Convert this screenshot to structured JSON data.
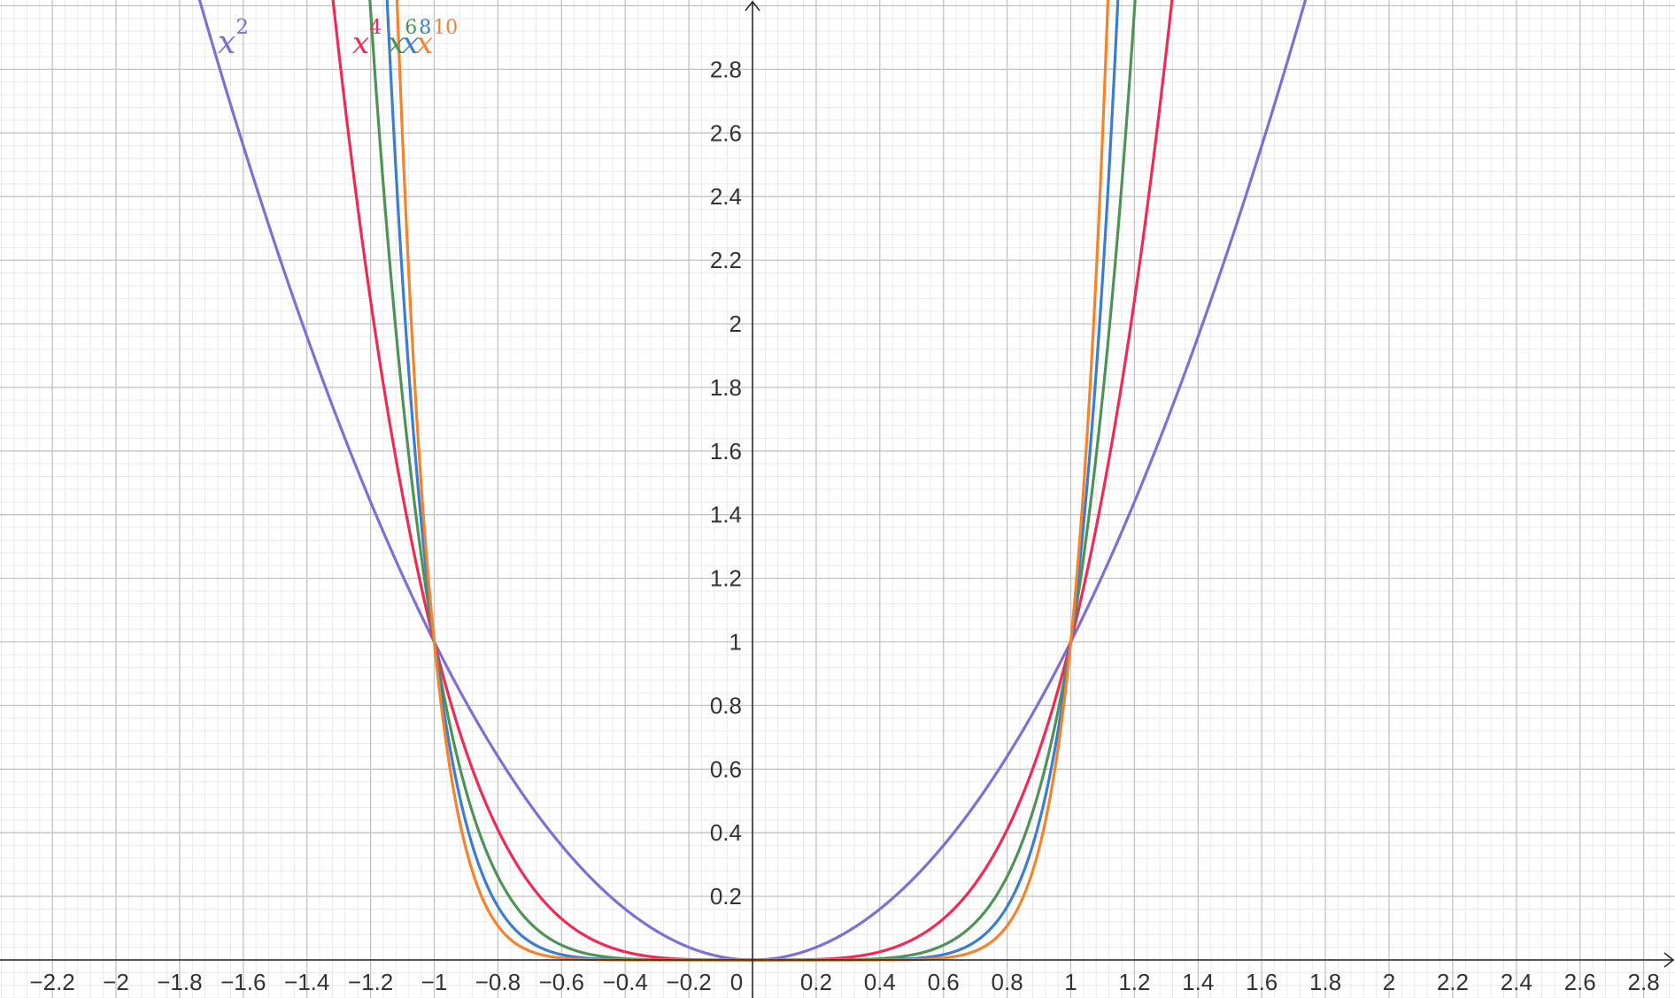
{
  "chart_data": {
    "type": "line",
    "title": "",
    "xlabel": "",
    "ylabel": "",
    "xlim": [
      -2.37,
      2.89
    ],
    "ylim": [
      -0.12,
      3.0
    ],
    "grid": true,
    "x_ticks": [
      "−2.2",
      "−2",
      "−1.8",
      "−1.6",
      "−1.4",
      "−1.2",
      "−1",
      "−0.8",
      "−0.6",
      "−0.4",
      "−0.2",
      "0",
      "0.2",
      "0.4",
      "0.6",
      "0.8",
      "1",
      "1.2",
      "1.4",
      "1.6",
      "1.8",
      "2",
      "2.2",
      "2.4",
      "2.6",
      "2.8"
    ],
    "y_ticks": [
      "0.2",
      "0.4",
      "0.6",
      "0.8",
      "1",
      "1.2",
      "1.4",
      "1.6",
      "1.8",
      "2",
      "2.2",
      "2.4",
      "2.6",
      "2.8"
    ],
    "series": [
      {
        "name": "x",
        "exponent": "2",
        "function": "x^2",
        "color": "#7d6fd6"
      },
      {
        "name": "x",
        "exponent": "4",
        "function": "x^4",
        "color": "#ee2a55"
      },
      {
        "name": "x",
        "exponent": "6",
        "function": "x^6",
        "color": "#4e9356"
      },
      {
        "name": "x",
        "exponent": "8",
        "function": "x^8",
        "color": "#3b7dce"
      },
      {
        "name": "x",
        "exponent": "10",
        "function": "x^10",
        "color": "#f5832b"
      }
    ]
  }
}
